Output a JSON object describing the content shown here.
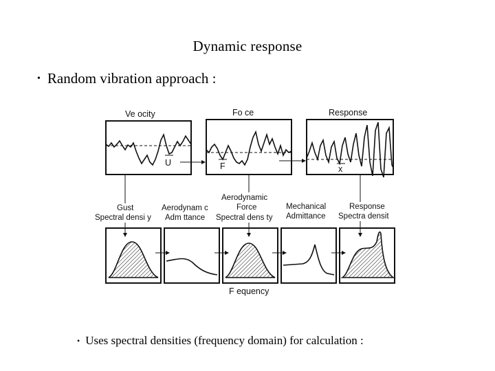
{
  "slide": {
    "title": "Dynamic response",
    "bullet": "Random vibration approach  :",
    "sub_bullet": "Uses spectral densities (frequency domain) for calculation  :"
  },
  "diagram": {
    "time_panels": [
      {
        "name": "velocity",
        "title": "Ve ocity",
        "mean_label": "U"
      },
      {
        "name": "force",
        "title": "Fo ce",
        "mean_label": "F"
      },
      {
        "name": "response",
        "title": "Response",
        "mean_label": "x"
      }
    ],
    "spectral_labels": [
      {
        "name": "gust",
        "line1": "Gust",
        "line2": "Spectral densi y"
      },
      {
        "name": "aero-admittance",
        "line1": "Aerodynam c",
        "line2": "Adm ttance"
      },
      {
        "name": "force-spectral",
        "line0": "Aerodynamic",
        "line1": "Force",
        "line2": "Spectral dens ty"
      },
      {
        "name": "mechanical-admittance",
        "line1": "Mechanical",
        "line2": "Admittance"
      },
      {
        "name": "response-spectral",
        "line1": "Response",
        "line2": "Spectra densit"
      }
    ],
    "frequency_label": "F equency"
  }
}
